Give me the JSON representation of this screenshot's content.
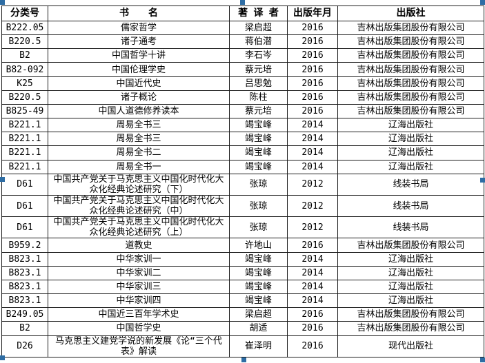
{
  "selection": {
    "handle_color": "#2e6da4"
  },
  "table": {
    "headers": {
      "class_no": "分类号",
      "title": "书　　名",
      "author": "著 译 者",
      "year": "出版年月",
      "publisher": "出版社"
    },
    "rows": [
      {
        "class_no": "B222.05",
        "title": "儒家哲学",
        "author": "梁启超",
        "year": "2016",
        "publisher": "吉林出版集团股份有限公司"
      },
      {
        "class_no": "B220.5",
        "title": "诸子通考",
        "author": "蒋伯潜",
        "year": "2016",
        "publisher": "吉林出版集团股份有限公司"
      },
      {
        "class_no": "B2",
        "title": "中国哲学十讲",
        "author": "李石岑",
        "year": "2016",
        "publisher": "吉林出版集团股份有限公司"
      },
      {
        "class_no": "B82-092",
        "title": "中国伦理学史",
        "author": "蔡元培",
        "year": "2016",
        "publisher": "吉林出版集团股份有限公司"
      },
      {
        "class_no": "K25",
        "title": "中国近代史",
        "author": "吕思勉",
        "year": "2016",
        "publisher": "吉林出版集团股份有限公司"
      },
      {
        "class_no": "B220.5",
        "title": "诸子概论",
        "author": "陈柱",
        "year": "2016",
        "publisher": "吉林出版集团股份有限公司"
      },
      {
        "class_no": "B825-49",
        "title": "中国人道德修养读本",
        "author": "蔡元培",
        "year": "2016",
        "publisher": "吉林出版集团股份有限公司"
      },
      {
        "class_no": "B221.1",
        "title": "周易全书三",
        "author": "竭宝峰",
        "year": "2014",
        "publisher": "辽海出版社"
      },
      {
        "class_no": "B221.1",
        "title": "周易全书三",
        "author": "竭宝峰",
        "year": "2014",
        "publisher": "辽海出版社"
      },
      {
        "class_no": "B221.1",
        "title": "周易全书二",
        "author": "竭宝峰",
        "year": "2014",
        "publisher": "辽海出版社"
      },
      {
        "class_no": "B221.1",
        "title": "周易全书一",
        "author": "竭宝峰",
        "year": "2014",
        "publisher": "辽海出版社"
      },
      {
        "class_no": "D61",
        "title": "中国共产党关于马克思主义中国化时代化大众化经典论述研究（下）",
        "author": "张琼",
        "year": "2012",
        "publisher": "线装书局"
      },
      {
        "class_no": "D61",
        "title": "中国共产党关于马克思主义中国化时代化大众化经典论述研究（中）",
        "author": "张琼",
        "year": "2012",
        "publisher": "线装书局"
      },
      {
        "class_no": "D61",
        "title": "中国共产党关于马克思主义中国化时代化大众化经典论述研究（上）",
        "author": "张琼",
        "year": "2012",
        "publisher": "线装书局"
      },
      {
        "class_no": "B959.2",
        "title": "道教史",
        "author": "许地山",
        "year": "2016",
        "publisher": "吉林出版集团股份有限公司"
      },
      {
        "class_no": "B823.1",
        "title": "中华家训一",
        "author": "竭宝峰",
        "year": "2014",
        "publisher": "辽海出版社"
      },
      {
        "class_no": "B823.1",
        "title": "中华家训二",
        "author": "竭宝峰",
        "year": "2014",
        "publisher": "辽海出版社"
      },
      {
        "class_no": "B823.1",
        "title": "中华家训三",
        "author": "竭宝峰",
        "year": "2014",
        "publisher": "辽海出版社"
      },
      {
        "class_no": "B823.1",
        "title": "中华家训四",
        "author": "竭宝峰",
        "year": "2014",
        "publisher": "辽海出版社"
      },
      {
        "class_no": "B249.05",
        "title": "中国近三百年学术史",
        "author": "梁启超",
        "year": "2016",
        "publisher": "吉林出版集团股份有限公司"
      },
      {
        "class_no": "B2",
        "title": "中国哲学史",
        "author": "胡适",
        "year": "2016",
        "publisher": "吉林出版集团股份有限公司"
      },
      {
        "class_no": "D26",
        "title": "马克思主义建党学说的新发展《论“三个代表》解读",
        "author": "崔泽明",
        "year": "2016",
        "publisher": "现代出版社"
      }
    ]
  }
}
